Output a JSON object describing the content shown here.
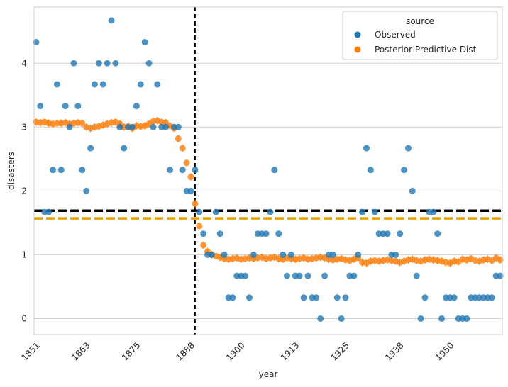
{
  "chart_data": {
    "type": "scatter",
    "xlabel": "year",
    "ylabel": "disasters",
    "xlim": [
      1850.5,
      1962.5
    ],
    "ylim": [
      -0.25,
      4.88
    ],
    "x_ticks": [
      1851,
      1863,
      1875,
      1888,
      1900,
      1913,
      1925,
      1938,
      1950
    ],
    "y_ticks": [
      0,
      1,
      2,
      3,
      4
    ],
    "grid": "horizontal",
    "legend": {
      "title": "source",
      "placement": "upper-right",
      "entries": [
        "Observed",
        "Posterior Predictive Dist"
      ]
    },
    "reference_lines": {
      "vertical_year": 1889,
      "horizontal_black": 1.69,
      "horizontal_orange": 1.57
    },
    "colors": {
      "observed": "#1f77b4",
      "posterior": "#ff7f0e",
      "orange_line": "#e8a000",
      "black_line": "#000000",
      "grid": "#d0d0d0",
      "frame": "#cccccc"
    },
    "series": [
      {
        "name": "Observed",
        "x": [
          1851,
          1852,
          1853,
          1854,
          1855,
          1856,
          1857,
          1858,
          1859,
          1860,
          1861,
          1862,
          1863,
          1864,
          1865,
          1866,
          1867,
          1868,
          1869,
          1870,
          1871,
          1872,
          1873,
          1874,
          1875,
          1876,
          1877,
          1878,
          1879,
          1880,
          1881,
          1882,
          1883,
          1884,
          1885,
          1886,
          1887,
          1888,
          1889,
          1890,
          1891,
          1892,
          1893,
          1894,
          1895,
          1896,
          1897,
          1898,
          1899,
          1900,
          1901,
          1902,
          1903,
          1904,
          1905,
          1906,
          1907,
          1908,
          1909,
          1910,
          1911,
          1912,
          1913,
          1914,
          1915,
          1916,
          1917,
          1918,
          1919,
          1920,
          1921,
          1922,
          1923,
          1924,
          1925,
          1926,
          1927,
          1928,
          1929,
          1930,
          1931,
          1932,
          1933,
          1934,
          1935,
          1936,
          1937,
          1938,
          1939,
          1940,
          1941,
          1942,
          1943,
          1944,
          1945,
          1946,
          1947,
          1948,
          1949,
          1950,
          1951,
          1952,
          1953,
          1954,
          1955,
          1956,
          1957,
          1958,
          1959,
          1960,
          1961,
          1962
        ],
        "values": [
          4.33,
          3.33,
          1.67,
          1.67,
          2.33,
          3.67,
          2.33,
          3.33,
          3.0,
          4.0,
          3.33,
          2.33,
          2.0,
          2.67,
          3.67,
          4.0,
          3.67,
          4.0,
          4.67,
          4.0,
          3.0,
          2.67,
          3.0,
          3.0,
          3.33,
          3.67,
          4.33,
          4.0,
          3.0,
          3.67,
          3.0,
          3.0,
          2.33,
          3.0,
          3.0,
          2.33,
          2.0,
          2.0,
          2.33,
          1.67,
          1.33,
          1.0,
          1.0,
          1.67,
          1.33,
          1.0,
          0.33,
          0.33,
          0.67,
          0.67,
          0.67,
          0.33,
          1.0,
          1.33,
          1.33,
          1.33,
          1.67,
          2.33,
          1.33,
          1.0,
          0.67,
          1.0,
          0.67,
          0.67,
          0.33,
          0.67,
          0.33,
          0.33,
          0.0,
          0.67,
          1.0,
          1.0,
          0.33,
          0.0,
          0.33,
          0.67,
          0.67,
          1.0,
          1.67,
          2.67,
          2.33,
          1.67,
          1.33,
          1.33,
          1.33,
          1.0,
          1.0,
          1.33,
          2.33,
          2.67,
          2.0,
          0.67,
          0.0,
          0.33,
          1.67,
          1.67,
          1.33,
          0.0,
          0.33,
          0.33,
          0.33,
          0.0,
          0.0,
          0.0,
          0.33,
          0.33,
          0.33,
          0.33,
          0.33,
          0.33,
          0.67,
          0.67
        ]
      },
      {
        "name": "Posterior Predictive Dist",
        "x": [
          1851,
          1852,
          1853,
          1854,
          1855,
          1856,
          1857,
          1858,
          1859,
          1860,
          1861,
          1862,
          1863,
          1864,
          1865,
          1866,
          1867,
          1868,
          1869,
          1870,
          1871,
          1872,
          1873,
          1874,
          1875,
          1876,
          1877,
          1878,
          1879,
          1880,
          1881,
          1882,
          1883,
          1884,
          1885,
          1886,
          1887,
          1888,
          1889,
          1890,
          1891,
          1892,
          1893,
          1894,
          1895,
          1896,
          1897,
          1898,
          1899,
          1900,
          1901,
          1902,
          1903,
          1904,
          1905,
          1906,
          1907,
          1908,
          1909,
          1910,
          1911,
          1912,
          1913,
          1914,
          1915,
          1916,
          1917,
          1918,
          1919,
          1920,
          1921,
          1922,
          1923,
          1924,
          1925,
          1926,
          1927,
          1928,
          1929,
          1930,
          1931,
          1932,
          1933,
          1934,
          1935,
          1936,
          1937,
          1938,
          1939,
          1940,
          1941,
          1942,
          1943,
          1944,
          1945,
          1946,
          1947,
          1948,
          1949,
          1950,
          1951,
          1952,
          1953,
          1954,
          1955,
          1956,
          1957,
          1958,
          1959,
          1960,
          1961,
          1962
        ],
        "values": [
          3.08,
          3.07,
          3.08,
          3.06,
          3.05,
          3.06,
          3.06,
          3.07,
          3.05,
          3.06,
          3.07,
          3.06,
          3.0,
          2.98,
          3.0,
          3.01,
          3.03,
          3.05,
          3.07,
          3.08,
          3.05,
          3.0,
          3.01,
          2.98,
          3.02,
          3.01,
          3.02,
          3.05,
          3.09,
          3.1,
          3.08,
          3.07,
          3.02,
          2.98,
          2.82,
          2.67,
          2.44,
          2.22,
          1.8,
          1.45,
          1.15,
          1.05,
          1.0,
          0.98,
          0.96,
          0.94,
          0.93,
          0.94,
          0.95,
          0.93,
          0.94,
          0.95,
          0.94,
          0.95,
          0.96,
          0.94,
          0.95,
          0.96,
          0.94,
          0.93,
          0.95,
          0.94,
          0.93,
          0.94,
          0.95,
          0.93,
          0.94,
          0.95,
          0.96,
          0.95,
          0.93,
          0.92,
          0.93,
          0.94,
          0.92,
          0.91,
          0.93,
          0.95,
          0.88,
          0.87,
          0.9,
          0.91,
          0.9,
          0.91,
          0.92,
          0.91,
          0.9,
          0.88,
          0.9,
          0.92,
          0.93,
          0.91,
          0.9,
          0.92,
          0.93,
          0.92,
          0.91,
          0.9,
          0.88,
          0.87,
          0.9,
          0.89,
          0.93,
          0.92,
          0.94,
          0.91,
          0.9,
          0.92,
          0.93,
          0.91,
          0.95,
          0.92
        ],
        "error": 0.06
      }
    ]
  }
}
